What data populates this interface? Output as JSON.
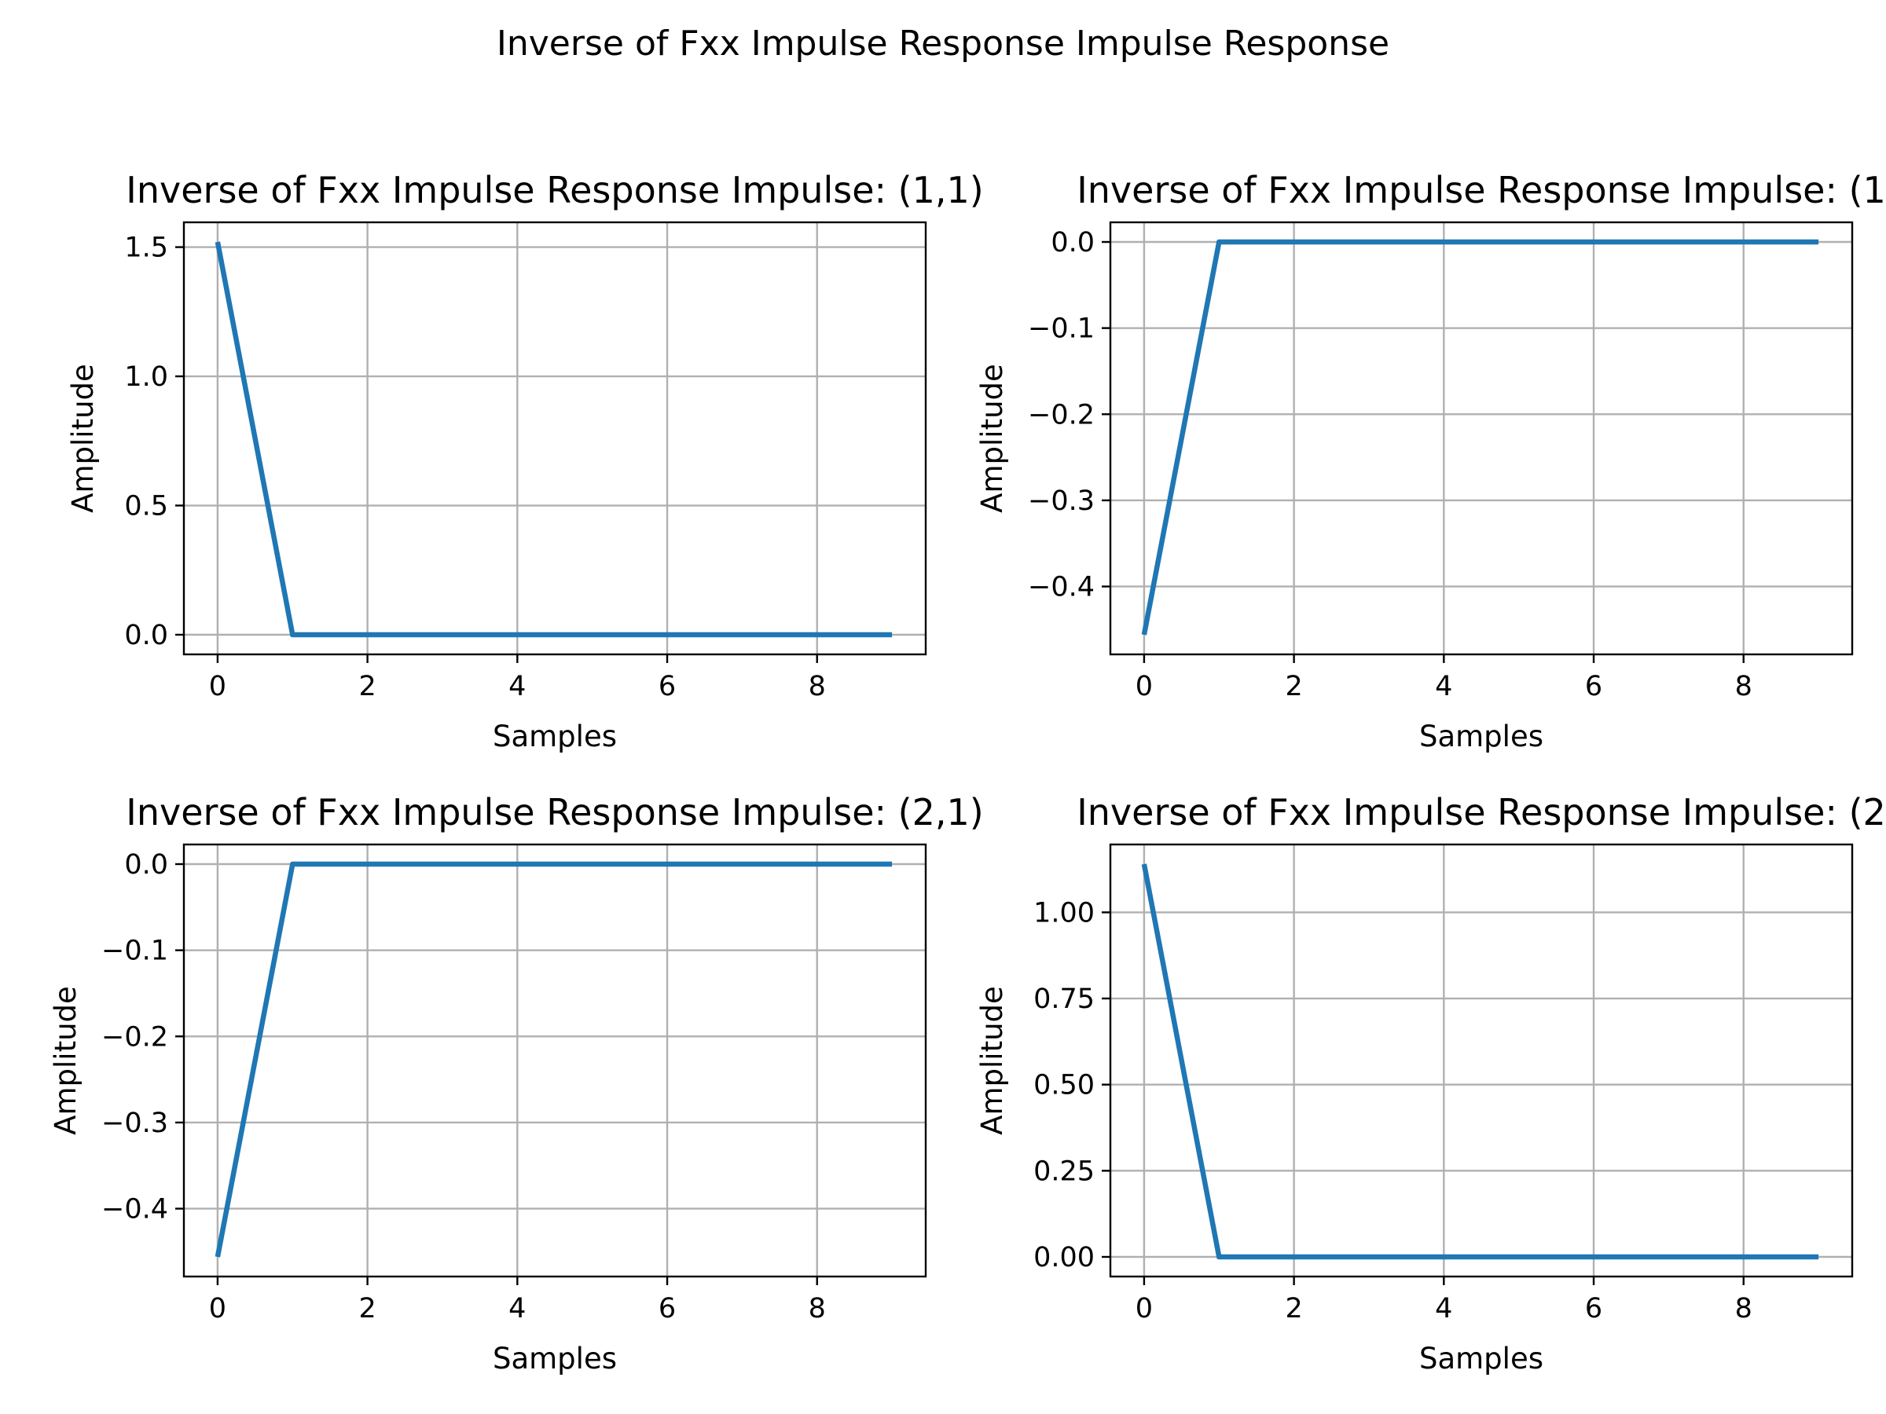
{
  "figure": {
    "suptitle": "Inverse of Fxx Impulse Response Impulse Response",
    "line_color": "#1f77b4",
    "grid_color": "#b0b0b0"
  },
  "chart_data": [
    {
      "type": "line",
      "title": "Inverse of Fxx Impulse Response Impulse: (1,1)",
      "xlabel": "Samples",
      "ylabel": "Amplitude",
      "x": [
        0,
        1,
        2,
        3,
        4,
        5,
        6,
        7,
        8,
        9
      ],
      "series": [
        {
          "values": [
            1.52,
            0,
            0,
            0,
            0,
            0,
            0,
            0,
            0,
            0
          ]
        }
      ],
      "xlim": [
        -0.45,
        9.45
      ],
      "ylim": [
        -0.076,
        1.596
      ],
      "xticks": [
        0,
        2,
        4,
        6,
        8
      ],
      "yticks": [
        0.0,
        0.5,
        1.0,
        1.5
      ],
      "ytick_labels": [
        "0.0",
        "0.5",
        "1.0",
        "1.5"
      ],
      "grid": true
    },
    {
      "type": "line",
      "title": "Inverse of Fxx Impulse Response Impulse: (1",
      "xlabel": "Samples",
      "ylabel": "Amplitude",
      "x": [
        0,
        1,
        2,
        3,
        4,
        5,
        6,
        7,
        8,
        9
      ],
      "series": [
        {
          "values": [
            -0.456,
            0,
            0,
            0,
            0,
            0,
            0,
            0,
            0,
            0
          ]
        }
      ],
      "xlim": [
        -0.45,
        9.45
      ],
      "ylim": [
        -0.4788,
        0.0228
      ],
      "xticks": [
        0,
        2,
        4,
        6,
        8
      ],
      "yticks": [
        -0.4,
        -0.3,
        -0.2,
        -0.1,
        0.0
      ],
      "ytick_labels": [
        "−0.4",
        "−0.3",
        "−0.2",
        "−0.1",
        "0.0"
      ],
      "grid": true
    },
    {
      "type": "line",
      "title": "Inverse of Fxx Impulse Response Impulse: (2,1)",
      "xlabel": "Samples",
      "ylabel": "Amplitude",
      "x": [
        0,
        1,
        2,
        3,
        4,
        5,
        6,
        7,
        8,
        9
      ],
      "series": [
        {
          "values": [
            -0.456,
            0,
            0,
            0,
            0,
            0,
            0,
            0,
            0,
            0
          ]
        }
      ],
      "xlim": [
        -0.45,
        9.45
      ],
      "ylim": [
        -0.4788,
        0.0228
      ],
      "xticks": [
        0,
        2,
        4,
        6,
        8
      ],
      "yticks": [
        -0.4,
        -0.3,
        -0.2,
        -0.1,
        0.0
      ],
      "ytick_labels": [
        "−0.4",
        "−0.3",
        "−0.2",
        "−0.1",
        "0.0"
      ],
      "grid": true
    },
    {
      "type": "line",
      "title": "Inverse of Fxx Impulse Response Impulse: (2",
      "xlabel": "Samples",
      "ylabel": "Amplitude",
      "x": [
        0,
        1,
        2,
        3,
        4,
        5,
        6,
        7,
        8,
        9
      ],
      "series": [
        {
          "values": [
            1.14,
            0,
            0,
            0,
            0,
            0,
            0,
            0,
            0,
            0
          ]
        }
      ],
      "xlim": [
        -0.45,
        9.45
      ],
      "ylim": [
        -0.057,
        1.197
      ],
      "xticks": [
        0,
        2,
        4,
        6,
        8
      ],
      "yticks": [
        0.0,
        0.25,
        0.5,
        0.75,
        1.0
      ],
      "ytick_labels": [
        "0.00",
        "0.25",
        "0.50",
        "0.75",
        "1.00"
      ],
      "grid": true
    }
  ]
}
